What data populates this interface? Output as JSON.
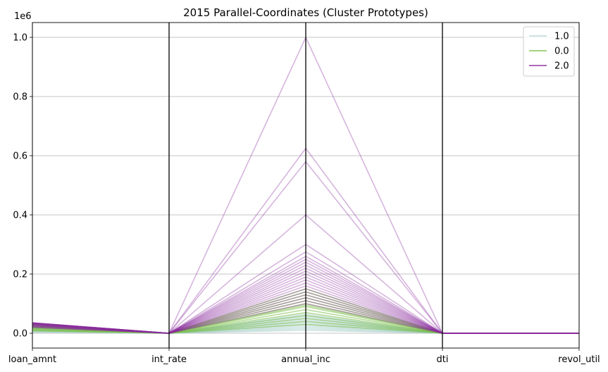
{
  "chart_data": {
    "type": "parallel_coordinates",
    "title": "2015 Parallel-Coordinates (Cluster Prototypes)",
    "axes": [
      "loan_amnt",
      "int_rate",
      "annual_inc",
      "dti",
      "revol_util"
    ],
    "y_offset_label": "1e6",
    "ylim": [
      -0.05,
      1.05
    ],
    "y_ticks": [
      0.0,
      0.2,
      0.4,
      0.6,
      0.8,
      1.0
    ],
    "y_tick_labels": [
      "0.0",
      "0.2",
      "0.4",
      "0.6",
      "0.8",
      "1.0"
    ],
    "grid": true,
    "legend_position": "top-right",
    "series": [
      {
        "name": "1.0",
        "color": "#a8cfc9",
        "lines": [
          [
            0.003,
            0.0,
            0.01,
            0.0,
            0.0
          ],
          [
            0.005,
            0.0,
            0.015,
            0.0,
            0.0
          ],
          [
            0.006,
            0.0,
            0.02,
            0.0,
            0.0
          ],
          [
            0.008,
            0.0,
            0.025,
            0.0,
            0.0
          ],
          [
            0.01,
            0.0,
            0.03,
            0.0,
            0.0
          ],
          [
            0.012,
            0.0,
            0.035,
            0.0,
            0.0
          ],
          [
            0.014,
            0.0,
            0.04,
            0.0,
            0.0
          ],
          [
            0.015,
            0.0,
            0.045,
            0.0,
            0.0
          ],
          [
            0.016,
            0.0,
            0.05,
            0.0,
            0.0
          ],
          [
            0.018,
            0.0,
            0.055,
            0.0,
            0.0
          ],
          [
            0.02,
            0.0,
            0.06,
            0.0,
            0.0
          ],
          [
            0.022,
            0.0,
            0.065,
            0.0,
            0.0
          ]
        ]
      },
      {
        "name": "0.0",
        "color": "#7cc04a",
        "lines": [
          [
            0.008,
            0.0,
            0.03,
            0.0,
            0.0
          ],
          [
            0.01,
            0.0,
            0.04,
            0.0,
            0.0
          ],
          [
            0.012,
            0.0,
            0.05,
            0.0,
            0.0
          ],
          [
            0.014,
            0.0,
            0.06,
            0.0,
            0.0
          ],
          [
            0.016,
            0.0,
            0.07,
            0.0,
            0.0
          ],
          [
            0.018,
            0.0,
            0.08,
            0.0,
            0.0
          ],
          [
            0.02,
            0.0,
            0.09,
            0.0,
            0.0
          ],
          [
            0.022,
            0.0,
            0.095,
            0.0,
            0.0
          ],
          [
            0.024,
            0.0,
            0.1,
            0.0,
            0.0
          ],
          [
            0.025,
            0.0,
            0.11,
            0.0,
            0.0
          ],
          [
            0.026,
            0.0,
            0.12,
            0.0,
            0.0
          ],
          [
            0.028,
            0.0,
            0.13,
            0.0,
            0.0
          ],
          [
            0.03,
            0.0,
            0.14,
            0.0,
            0.0
          ],
          [
            0.032,
            0.0,
            0.15,
            0.0,
            0.0
          ]
        ]
      },
      {
        "name": "2.0",
        "color": "#8a2a9e",
        "lines": [
          [
            0.035,
            0.0,
            1.0,
            0.0,
            0.0
          ],
          [
            0.035,
            0.0,
            0.625,
            0.0,
            0.0
          ],
          [
            0.035,
            0.0,
            0.58,
            0.0,
            0.0
          ],
          [
            0.035,
            0.0,
            0.4,
            0.0,
            0.0
          ],
          [
            0.035,
            0.0,
            0.3,
            0.0,
            0.0
          ],
          [
            0.035,
            0.0,
            0.275,
            0.0,
            0.0
          ],
          [
            0.035,
            0.0,
            0.26,
            0.0,
            0.0
          ],
          [
            0.034,
            0.0,
            0.25,
            0.0,
            0.0
          ],
          [
            0.033,
            0.0,
            0.24,
            0.0,
            0.0
          ],
          [
            0.032,
            0.0,
            0.23,
            0.0,
            0.0
          ],
          [
            0.032,
            0.0,
            0.22,
            0.0,
            0.0
          ],
          [
            0.031,
            0.0,
            0.21,
            0.0,
            0.0
          ],
          [
            0.03,
            0.0,
            0.2,
            0.0,
            0.0
          ],
          [
            0.03,
            0.0,
            0.19,
            0.0,
            0.0
          ],
          [
            0.028,
            0.0,
            0.18,
            0.0,
            0.0
          ],
          [
            0.028,
            0.0,
            0.17,
            0.0,
            0.0
          ],
          [
            0.027,
            0.0,
            0.16,
            0.0,
            0.0
          ],
          [
            0.026,
            0.0,
            0.15,
            0.0,
            0.0
          ],
          [
            0.025,
            0.0,
            0.14,
            0.0,
            0.0
          ],
          [
            0.024,
            0.0,
            0.13,
            0.0,
            0.0
          ],
          [
            0.022,
            0.0,
            0.12,
            0.0,
            0.0
          ],
          [
            0.02,
            0.0,
            0.11,
            0.0,
            0.0
          ],
          [
            0.02,
            0.0,
            0.1,
            0.0,
            0.0
          ]
        ]
      }
    ]
  }
}
